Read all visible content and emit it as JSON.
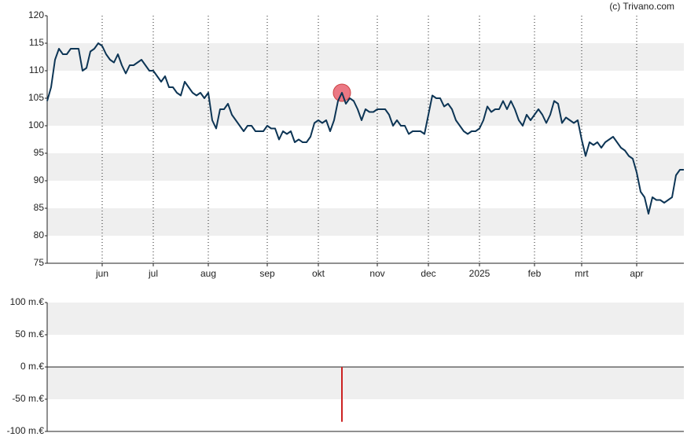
{
  "chart_data": [
    {
      "type": "line",
      "source": "(c) Trivano.com",
      "color": "#0d3555",
      "band_color": "#efefef",
      "bands": true,
      "ylim": [
        75,
        120
      ],
      "yticks": [
        75,
        80,
        85,
        90,
        95,
        100,
        105,
        110,
        115,
        120
      ],
      "marker": {
        "index": 75,
        "color": "#e8606e"
      },
      "categories": [
        null,
        null,
        null,
        null,
        null,
        null,
        null,
        null,
        null,
        null,
        null,
        null,
        null,
        null,
        "jun",
        null,
        null,
        null,
        null,
        null,
        null,
        null,
        null,
        null,
        null,
        null,
        null,
        "jul",
        null,
        null,
        null,
        null,
        null,
        null,
        null,
        null,
        null,
        null,
        null,
        null,
        null,
        "aug",
        null,
        null,
        null,
        null,
        null,
        null,
        null,
        null,
        null,
        null,
        null,
        null,
        null,
        null,
        "sep",
        null,
        null,
        null,
        null,
        null,
        null,
        null,
        null,
        null,
        null,
        null,
        null,
        "okt",
        null,
        null,
        null,
        null,
        null,
        null,
        null,
        null,
        null,
        null,
        null,
        null,
        null,
        null,
        "nov",
        null,
        null,
        null,
        null,
        null,
        null,
        null,
        null,
        null,
        null,
        null,
        null,
        "dec",
        null,
        null,
        null,
        null,
        null,
        null,
        null,
        null,
        null,
        null,
        null,
        null,
        "2025",
        null,
        null,
        null,
        null,
        null,
        null,
        null,
        null,
        null,
        null,
        null,
        null,
        null,
        "feb",
        null,
        null,
        null,
        null,
        null,
        null,
        null,
        null,
        null,
        null,
        null,
        "mrt",
        null,
        null,
        null,
        null,
        null,
        null,
        null,
        null,
        null,
        null,
        null,
        null,
        null,
        "apr",
        null,
        null,
        null,
        null,
        null,
        null,
        null,
        null,
        null,
        null,
        null,
        null
      ],
      "values": [
        104.5,
        107,
        112,
        114,
        113,
        113,
        114,
        114,
        114,
        110,
        110.5,
        113.5,
        114,
        115,
        114.5,
        113,
        112,
        111.5,
        113,
        111,
        109.5,
        111,
        111,
        111.5,
        112,
        111,
        110,
        110,
        109,
        108,
        109,
        107,
        107,
        106,
        105.5,
        108,
        107,
        106,
        105.5,
        106,
        105,
        106,
        101,
        99.5,
        103,
        103,
        104,
        102,
        101,
        100,
        99,
        100,
        100,
        99,
        99,
        99,
        100,
        99.5,
        99.5,
        97.5,
        99,
        98.5,
        99,
        97,
        97.5,
        97,
        97,
        98,
        100.5,
        101,
        100.5,
        101,
        99,
        101,
        104.5,
        106,
        104,
        105,
        104.5,
        103,
        101,
        103,
        102.5,
        102.5,
        103,
        103,
        103,
        102,
        100,
        101,
        100,
        100,
        98.5,
        99,
        99,
        99,
        98.5,
        102,
        105.5,
        105,
        105,
        103.5,
        104,
        103,
        101,
        100,
        99,
        98.5,
        99,
        99,
        99.5,
        101,
        103.5,
        102.5,
        103,
        103,
        104.5,
        103,
        104.5,
        103,
        101,
        100,
        102,
        101,
        102,
        103,
        102,
        100.5,
        102,
        104.5,
        104,
        100.5,
        101.5,
        101,
        100.5,
        101,
        97.5,
        94.5,
        97,
        96.5,
        97,
        96,
        97,
        97.5,
        98,
        97,
        96,
        95.5,
        94.5,
        94,
        91.5,
        88,
        87,
        84,
        87,
        86.5,
        86.5,
        86,
        86.5,
        87,
        91,
        92,
        92
      ]
    },
    {
      "type": "bar",
      "color": "#cc2222",
      "band_color": "#efefef",
      "bands": true,
      "values": [
        -85
      ],
      "ylim": [
        -100,
        100
      ],
      "yticks": [
        {
          "value": -100,
          "label": "-100 m.€"
        },
        {
          "value": -50,
          "label": "-50 m.€"
        },
        {
          "value": 0,
          "label": "0 m.€"
        },
        {
          "value": 50,
          "label": "50 m.€"
        },
        {
          "value": 100,
          "label": "100 m.€"
        }
      ]
    }
  ]
}
